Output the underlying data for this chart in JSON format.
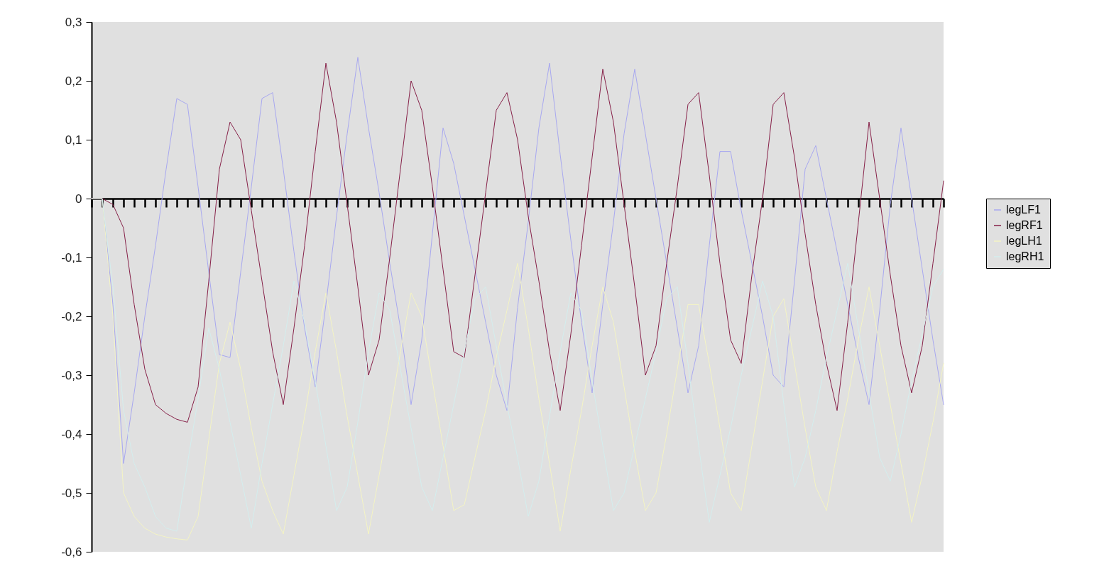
{
  "chart_data": {
    "type": "line",
    "categories": [
      null,
      null,
      null,
      null,
      null,
      null,
      null,
      null,
      null,
      null,
      null,
      null,
      null,
      null,
      null,
      null,
      null,
      null,
      null,
      null,
      null,
      null,
      null,
      null,
      null,
      null,
      null,
      null,
      null,
      null,
      null,
      null,
      null,
      null,
      null,
      null,
      null,
      null,
      null,
      null,
      null,
      null,
      null,
      null,
      null,
      null,
      null,
      null,
      null,
      null,
      null,
      null,
      null,
      null,
      null,
      null,
      null,
      null,
      null,
      null,
      null,
      null,
      null,
      null,
      null,
      null,
      null,
      null,
      null,
      null,
      null,
      null,
      null,
      null,
      null,
      null,
      null,
      null,
      null,
      null,
      null
    ],
    "series": [
      {
        "name": "legLF1",
        "color": "#a8a8f0",
        "values": [
          0,
          0,
          -0.18,
          -0.45,
          -0.33,
          -0.2,
          -0.08,
          0.05,
          0.17,
          0.16,
          0.02,
          -0.125,
          -0.265,
          -0.27,
          -0.125,
          0.02,
          0.17,
          0.18,
          0.05,
          -0.09,
          -0.22,
          -0.32,
          -0.18,
          -0.03,
          0.11,
          0.24,
          0.12,
          0.01,
          -0.11,
          -0.22,
          -0.35,
          -0.24,
          -0.06,
          0.12,
          0.06,
          -0.03,
          -0.12,
          -0.21,
          -0.3,
          -0.36,
          -0.185,
          -0.04,
          0.12,
          0.23,
          0.075,
          -0.07,
          -0.21,
          -0.33,
          -0.18,
          -0.04,
          0.11,
          0.22,
          0.11,
          0,
          -0.11,
          -0.22,
          -0.33,
          -0.25,
          -0.08,
          0.08,
          0.08,
          -0.02,
          -0.11,
          -0.2,
          -0.3,
          -0.32,
          -0.14,
          0.05,
          0.09,
          0,
          -0.09,
          -0.18,
          -0.27,
          -0.35,
          -0.19,
          -0.01,
          0.12,
          0,
          -0.12,
          -0.24,
          -0.35
        ]
      },
      {
        "name": "legRF1",
        "color": "#862048",
        "values": [
          0,
          0,
          -0.01,
          -0.05,
          -0.18,
          -0.29,
          -0.35,
          -0.365,
          -0.375,
          -0.38,
          -0.32,
          -0.14,
          0.05,
          0.13,
          0.1,
          -0.02,
          -0.14,
          -0.26,
          -0.35,
          -0.22,
          -0.08,
          0.08,
          0.23,
          0.13,
          -0.01,
          -0.15,
          -0.3,
          -0.24,
          -0.1,
          0.05,
          0.2,
          0.15,
          0.02,
          -0.12,
          -0.26,
          -0.27,
          -0.13,
          0.01,
          0.15,
          0.18,
          0.1,
          -0.03,
          -0.14,
          -0.26,
          -0.36,
          -0.23,
          -0.08,
          0.07,
          0.22,
          0.13,
          -0.01,
          -0.15,
          -0.3,
          -0.25,
          -0.11,
          0.02,
          0.16,
          0.18,
          0.04,
          -0.11,
          -0.24,
          -0.28,
          -0.13,
          0,
          0.16,
          0.18,
          0.07,
          -0.06,
          -0.18,
          -0.28,
          -0.36,
          -0.21,
          -0.04,
          0.13,
          0,
          -0.13,
          -0.25,
          -0.33,
          -0.25,
          -0.11,
          0.03
        ]
      },
      {
        "name": "legLH1",
        "color": "#f4f4c4",
        "values": [
          0,
          0,
          -0.2,
          -0.5,
          -0.54,
          -0.56,
          -0.57,
          -0.575,
          -0.578,
          -0.58,
          -0.54,
          -0.41,
          -0.28,
          -0.21,
          -0.29,
          -0.39,
          -0.48,
          -0.53,
          -0.57,
          -0.47,
          -0.37,
          -0.26,
          -0.16,
          -0.26,
          -0.37,
          -0.47,
          -0.57,
          -0.47,
          -0.37,
          -0.26,
          -0.16,
          -0.2,
          -0.31,
          -0.42,
          -0.53,
          -0.52,
          -0.44,
          -0.36,
          -0.27,
          -0.19,
          -0.11,
          -0.22,
          -0.34,
          -0.45,
          -0.565,
          -0.46,
          -0.36,
          -0.25,
          -0.15,
          -0.21,
          -0.32,
          -0.43,
          -0.53,
          -0.5,
          -0.4,
          -0.29,
          -0.18,
          -0.18,
          -0.28,
          -0.39,
          -0.5,
          -0.53,
          -0.42,
          -0.31,
          -0.2,
          -0.17,
          -0.28,
          -0.39,
          -0.49,
          -0.53,
          -0.43,
          -0.34,
          -0.24,
          -0.15,
          -0.25,
          -0.35,
          -0.45,
          -0.55,
          -0.47,
          -0.38,
          -0.28
        ]
      },
      {
        "name": "legRH1",
        "color": "#d4eeee",
        "values": [
          0,
          0,
          -0.15,
          -0.36,
          -0.45,
          -0.49,
          -0.54,
          -0.56,
          -0.565,
          -0.45,
          -0.34,
          -0.22,
          -0.29,
          -0.38,
          -0.47,
          -0.56,
          -0.45,
          -0.35,
          -0.25,
          -0.14,
          -0.21,
          -0.31,
          -0.42,
          -0.53,
          -0.49,
          -0.38,
          -0.26,
          -0.16,
          -0.19,
          -0.29,
          -0.39,
          -0.49,
          -0.53,
          -0.44,
          -0.35,
          -0.26,
          -0.17,
          -0.15,
          -0.25,
          -0.35,
          -0.44,
          -0.54,
          -0.48,
          -0.37,
          -0.26,
          -0.16,
          -0.19,
          -0.31,
          -0.42,
          -0.53,
          -0.5,
          -0.42,
          -0.34,
          -0.26,
          -0.17,
          -0.15,
          -0.28,
          -0.42,
          -0.55,
          -0.47,
          -0.39,
          -0.3,
          -0.22,
          -0.14,
          -0.2,
          -0.35,
          -0.49,
          -0.44,
          -0.36,
          -0.27,
          -0.19,
          -0.11,
          -0.22,
          -0.33,
          -0.44,
          -0.48,
          -0.4,
          -0.31,
          -0.23,
          -0.15,
          -0.12
        ]
      }
    ],
    "ylim": [
      -0.6,
      0.3
    ],
    "yticks": [
      {
        "value": -0.6,
        "label": "-0,6"
      },
      {
        "value": -0.5,
        "label": "-0,5"
      },
      {
        "value": -0.4,
        "label": "-0,4"
      },
      {
        "value": -0.3,
        "label": "-0,3"
      },
      {
        "value": -0.2,
        "label": "-0,2"
      },
      {
        "value": -0.1,
        "label": "-0,1"
      },
      {
        "value": 0,
        "label": "0"
      },
      {
        "value": 0.1,
        "label": "0,1"
      },
      {
        "value": 0.2,
        "label": "0,2"
      },
      {
        "value": 0.3,
        "label": "0,3"
      }
    ],
    "legend": "right",
    "tick_labels": "y"
  }
}
